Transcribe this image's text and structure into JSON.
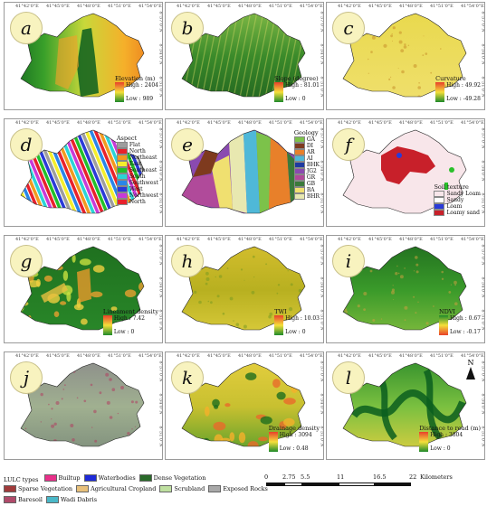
{
  "coord_labels": {
    "lon": [
      "41°42'0\"E",
      "41°45'0\"E",
      "41°48'0\"E",
      "41°51'0\"E",
      "41°54'0\"E"
    ],
    "lat": [
      "8°57'0\"N",
      "8°54'0\"N",
      "8°51'0\"N"
    ]
  },
  "panels": [
    {
      "id": "a",
      "legend": {
        "title": "Elevation (m)",
        "high": "High : 2404",
        "low": "Low : 989"
      }
    },
    {
      "id": "b",
      "legend": {
        "title": "Slope (degree)",
        "high": "High : 81.01",
        "low": "Low : 0"
      }
    },
    {
      "id": "c",
      "legend": {
        "title": "Curvature",
        "high": "High : 49.92",
        "low": "Low : -49.28"
      }
    },
    {
      "id": "d",
      "legend": {
        "title": "Aspect",
        "items": [
          {
            "label": "Flat",
            "color": "#9e9e9e"
          },
          {
            "label": "North",
            "color": "#e8212c"
          },
          {
            "label": "Northeast",
            "color": "#f29a1e"
          },
          {
            "label": "East",
            "color": "#f5ee2c"
          },
          {
            "label": "Southeast",
            "color": "#22c02a"
          },
          {
            "label": "South",
            "color": "#2bd4d6"
          },
          {
            "label": "Southwest",
            "color": "#2a86e8"
          },
          {
            "label": "West",
            "color": "#2a3ad8"
          },
          {
            "label": "Northwest",
            "color": "#c83ad8"
          },
          {
            "label": "North",
            "color": "#e8212c"
          }
        ]
      }
    },
    {
      "id": "e",
      "legend": {
        "title": "Geology",
        "items": [
          {
            "label": "GA",
            "color": "#7cc24a"
          },
          {
            "label": "DI",
            "color": "#7e3a1e"
          },
          {
            "label": "AR",
            "color": "#e8802a"
          },
          {
            "label": "AI",
            "color": "#4fb8d8"
          },
          {
            "label": "BHK",
            "color": "#1e3aa0"
          },
          {
            "label": "JG2",
            "color": "#8a4ab0"
          },
          {
            "label": "GR",
            "color": "#b04a9a"
          },
          {
            "label": "GB",
            "color": "#3a7a3a"
          },
          {
            "label": "BA",
            "color": "#f0e070"
          },
          {
            "label": "BHR",
            "color": "#e8e8b0"
          }
        ]
      }
    },
    {
      "id": "f",
      "legend": {
        "title": "Soil texture",
        "items": [
          {
            "label": "Sandy Loam",
            "color": "#f8e6ea"
          },
          {
            "label": "Sandy",
            "color": "#ffffff"
          },
          {
            "label": "Loam",
            "color": "#2a3ad8"
          },
          {
            "label": "Loamy sand",
            "color": "#c8202a"
          }
        ]
      }
    },
    {
      "id": "g",
      "legend": {
        "title": "Lineament density",
        "high": "High : 7.42",
        "low": "Low : 0"
      }
    },
    {
      "id": "h",
      "legend": {
        "title": "TWI",
        "high": "High : 10.03",
        "low": "Low : 0"
      }
    },
    {
      "id": "i",
      "legend": {
        "title": "NDVI",
        "high": "High : 0.67",
        "low": "Low : -0.17"
      }
    },
    {
      "id": "j",
      "legend": null
    },
    {
      "id": "k",
      "legend": {
        "title": "Drainage density",
        "high": "High : 3094",
        "low": "Low : 0.48"
      }
    },
    {
      "id": "l",
      "legend": {
        "title": "Distance to road (m)",
        "high": "High : 3804",
        "low": "Low : 0"
      }
    }
  ],
  "north_arrow": "N",
  "lulc": {
    "title": "LULC types",
    "items": [
      {
        "label": "Builtup",
        "color": "#e8308a"
      },
      {
        "label": "Waterbodies",
        "color": "#1e2ad8"
      },
      {
        "label": "Dense Vegetation",
        "color": "#2a6a2a"
      },
      {
        "label": "Sparse Vegetation",
        "color": "#a03a3a"
      },
      {
        "label": "Agricultural Cropland",
        "color": "#e8c07a"
      },
      {
        "label": "Scrubland",
        "color": "#bfe0a0"
      },
      {
        "label": "Exposed Rocks",
        "color": "#a8a8a8"
      },
      {
        "label": "Baresoil",
        "color": "#b04a6a"
      },
      {
        "label": "Wadi Dabris",
        "color": "#4ab8c8"
      }
    ]
  },
  "scalebar": {
    "ticks": [
      "0",
      "2.75",
      "5.5",
      "11",
      "16.5",
      "22"
    ],
    "unit": "Kilometers"
  }
}
